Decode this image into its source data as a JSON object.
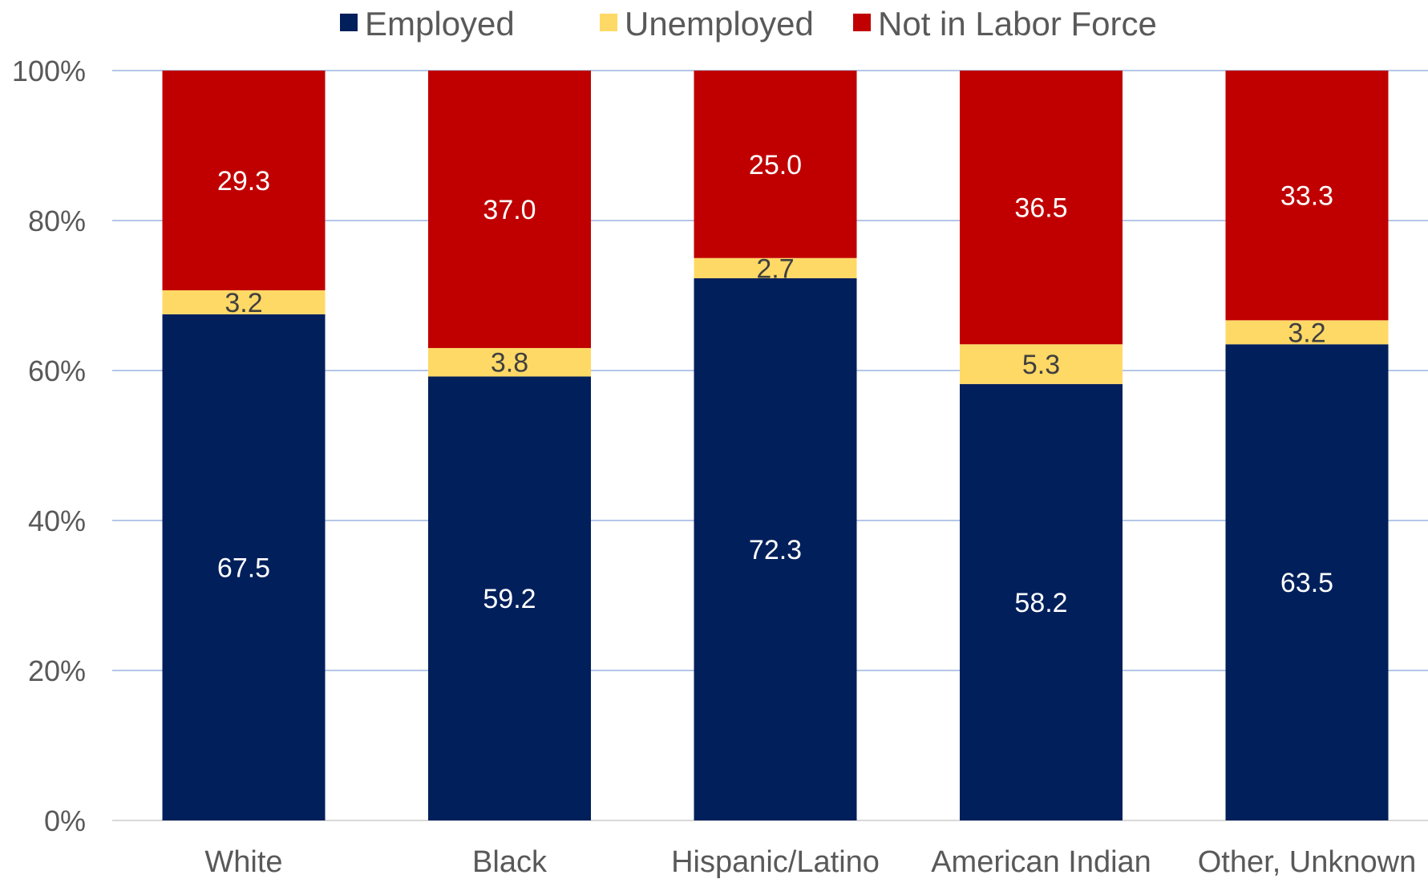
{
  "chart_data": {
    "type": "bar",
    "stacked": true,
    "categories": [
      "White",
      "Black",
      "Hispanic/Latino",
      "American Indian",
      "Other, Unknown"
    ],
    "series": [
      {
        "name": "Employed",
        "color": "#001f5b",
        "label_color": "#ffffff",
        "values": [
          67.5,
          59.2,
          72.3,
          58.2,
          63.5
        ]
      },
      {
        "name": "Unemployed",
        "color": "#ffd966",
        "label_color": "#404040",
        "values": [
          3.2,
          3.8,
          2.7,
          5.3,
          3.2
        ]
      },
      {
        "name": "Not in Labor Force",
        "color": "#c00000",
        "label_color": "#ffffff",
        "values": [
          29.3,
          37.0,
          25.0,
          36.5,
          33.3
        ]
      }
    ],
    "ylim": [
      0,
      100
    ],
    "yticks": [
      "0%",
      "20%",
      "40%",
      "60%",
      "80%",
      "100%"
    ],
    "grid": true,
    "grid_color": "#b4c7e7",
    "legend_position": "top-center",
    "title": "",
    "xlabel": "",
    "ylabel": ""
  }
}
